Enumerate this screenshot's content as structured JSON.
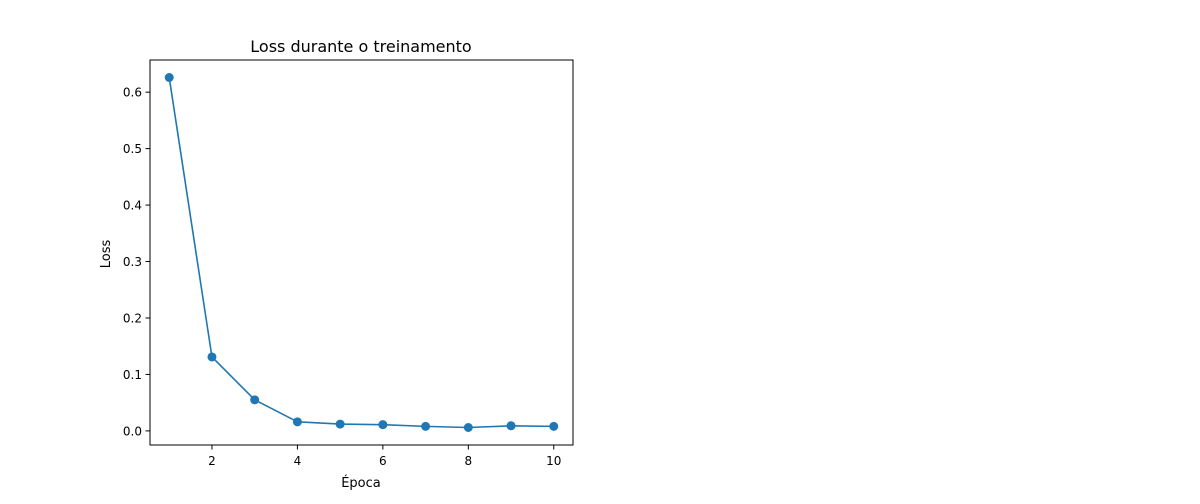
{
  "chart_data": {
    "type": "line",
    "title": "Loss durante o treinamento",
    "xlabel": "Época",
    "ylabel": "Loss",
    "x": [
      1,
      2,
      3,
      4,
      5,
      6,
      7,
      8,
      9,
      10
    ],
    "series": [
      {
        "values": [
          0.626,
          0.131,
          0.055,
          0.016,
          0.012,
          0.011,
          0.008,
          0.006,
          0.009,
          0.008
        ],
        "color": "#1f77b4",
        "marker": "circle"
      }
    ],
    "xlim": [
      0.55,
      10.45
    ],
    "ylim": [
      -0.025,
      0.657
    ],
    "xticks": [
      2,
      4,
      6,
      8,
      10
    ],
    "xtick_labels": [
      "2",
      "4",
      "6",
      "8",
      "10"
    ],
    "yticks": [
      0.0,
      0.1,
      0.2,
      0.3,
      0.4,
      0.5,
      0.6
    ],
    "ytick_labels": [
      "0.0",
      "0.1",
      "0.2",
      "0.3",
      "0.4",
      "0.5",
      "0.6"
    ],
    "grid": false,
    "legend": "none"
  }
}
